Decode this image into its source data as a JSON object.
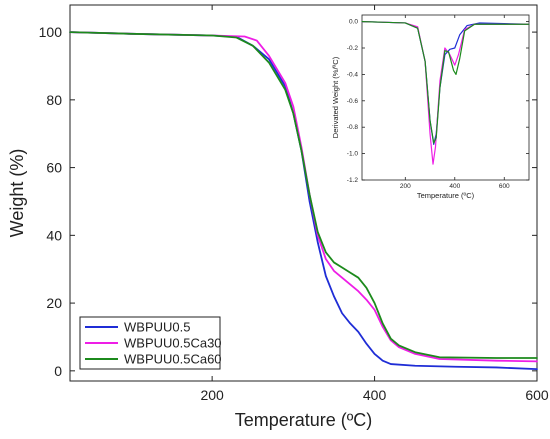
{
  "chart_data": [
    {
      "type": "line",
      "xlabel": "Temperature (ºC)",
      "ylabel": "Weight (%)",
      "xlim": [
        25,
        600
      ],
      "ylim": [
        -3,
        108
      ],
      "xticks": [
        200,
        400,
        600
      ],
      "yticks": [
        0,
        20,
        40,
        60,
        80,
        100
      ],
      "legend": "bottom-left",
      "series": [
        {
          "name": "WBPUU0.5",
          "color": "#1f2dd6",
          "points": [
            [
              25,
              100
            ],
            [
              100,
              99.5
            ],
            [
              200,
              99
            ],
            [
              230,
              98.6
            ],
            [
              250,
              96
            ],
            [
              270,
              92
            ],
            [
              290,
              84
            ],
            [
              300,
              76
            ],
            [
              310,
              65
            ],
            [
              320,
              50
            ],
            [
              330,
              38
            ],
            [
              340,
              28
            ],
            [
              350,
              22
            ],
            [
              360,
              17
            ],
            [
              370,
              14
            ],
            [
              380,
              11.5
            ],
            [
              390,
              8
            ],
            [
              400,
              5
            ],
            [
              410,
              3
            ],
            [
              420,
              2
            ],
            [
              450,
              1.5
            ],
            [
              500,
              1.2
            ],
            [
              550,
              1
            ],
            [
              600,
              0.5
            ]
          ]
        },
        {
          "name": "WBPUU0.5Ca30",
          "color": "#ee1ee6",
          "points": [
            [
              25,
              100
            ],
            [
              100,
              99.5
            ],
            [
              200,
              99
            ],
            [
              240,
              98.7
            ],
            [
              255,
              97.5
            ],
            [
              270,
              93
            ],
            [
              290,
              85
            ],
            [
              300,
              78
            ],
            [
              310,
              66
            ],
            [
              320,
              52
            ],
            [
              330,
              40
            ],
            [
              340,
              33
            ],
            [
              350,
              29.5
            ],
            [
              360,
              27.5
            ],
            [
              370,
              25.5
            ],
            [
              380,
              23.5
            ],
            [
              390,
              21
            ],
            [
              400,
              18
            ],
            [
              410,
              13
            ],
            [
              420,
              9
            ],
            [
              430,
              7
            ],
            [
              450,
              5
            ],
            [
              480,
              3.5
            ],
            [
              550,
              3
            ],
            [
              600,
              2.8
            ]
          ]
        },
        {
          "name": "WBPUU0.5Ca60",
          "color": "#1c8a1c",
          "points": [
            [
              25,
              100
            ],
            [
              100,
              99.5
            ],
            [
              200,
              99
            ],
            [
              230,
              98.4
            ],
            [
              250,
              96
            ],
            [
              270,
              91
            ],
            [
              290,
              83
            ],
            [
              300,
              76
            ],
            [
              310,
              65
            ],
            [
              320,
              52
            ],
            [
              330,
              41
            ],
            [
              340,
              35
            ],
            [
              350,
              32
            ],
            [
              360,
              30.5
            ],
            [
              370,
              29
            ],
            [
              380,
              27.5
            ],
            [
              390,
              24.5
            ],
            [
              400,
              20
            ],
            [
              410,
              14
            ],
            [
              420,
              9.5
            ],
            [
              430,
              7.5
            ],
            [
              450,
              5.5
            ],
            [
              480,
              4
            ],
            [
              550,
              3.8
            ],
            [
              600,
              3.8
            ]
          ]
        }
      ]
    },
    {
      "type": "line",
      "xlabel": "Temperature (ºC)",
      "ylabel": "Derivated Weight (%/ºC)",
      "xlim": [
        25,
        700
      ],
      "ylim": [
        -1.2,
        0.05
      ],
      "xticks": [
        200,
        400,
        600
      ],
      "yticks": [
        0.0,
        -0.2,
        -0.4,
        -0.6,
        -0.8,
        -1.0,
        -1.2
      ],
      "ytick_labels": [
        "0.0",
        "-0.2",
        "-0.4",
        "-0.6",
        "-0.8",
        "-1.0",
        "-1.2"
      ],
      "series": [
        {
          "name": "WBPUU0.5",
          "color": "#1f2dd6",
          "points": [
            [
              25,
              0
            ],
            [
              200,
              -0.01
            ],
            [
              250,
              -0.05
            ],
            [
              280,
              -0.3
            ],
            [
              300,
              -0.75
            ],
            [
              315,
              -0.93
            ],
            [
              325,
              -0.85
            ],
            [
              340,
              -0.5
            ],
            [
              360,
              -0.25
            ],
            [
              380,
              -0.21
            ],
            [
              400,
              -0.2
            ],
            [
              420,
              -0.1
            ],
            [
              450,
              -0.03
            ],
            [
              500,
              -0.01
            ],
            [
              700,
              -0.02
            ]
          ]
        },
        {
          "name": "WBPUU0.5Ca30",
          "color": "#ee1ee6",
          "points": [
            [
              25,
              0
            ],
            [
              200,
              -0.01
            ],
            [
              250,
              -0.04
            ],
            [
              280,
              -0.3
            ],
            [
              300,
              -0.85
            ],
            [
              312,
              -1.08
            ],
            [
              322,
              -0.95
            ],
            [
              340,
              -0.45
            ],
            [
              360,
              -0.2
            ],
            [
              380,
              -0.25
            ],
            [
              400,
              -0.33
            ],
            [
              415,
              -0.25
            ],
            [
              440,
              -0.06
            ],
            [
              480,
              -0.02
            ],
            [
              700,
              -0.02
            ]
          ]
        },
        {
          "name": "WBPUU0.5Ca60",
          "color": "#1c8a1c",
          "points": [
            [
              25,
              0
            ],
            [
              200,
              -0.01
            ],
            [
              250,
              -0.05
            ],
            [
              280,
              -0.3
            ],
            [
              300,
              -0.75
            ],
            [
              315,
              -0.92
            ],
            [
              325,
              -0.88
            ],
            [
              340,
              -0.5
            ],
            [
              360,
              -0.22
            ],
            [
              375,
              -0.23
            ],
            [
              395,
              -0.37
            ],
            [
              405,
              -0.4
            ],
            [
              420,
              -0.28
            ],
            [
              440,
              -0.07
            ],
            [
              480,
              -0.02
            ],
            [
              700,
              -0.02
            ]
          ]
        }
      ]
    }
  ]
}
